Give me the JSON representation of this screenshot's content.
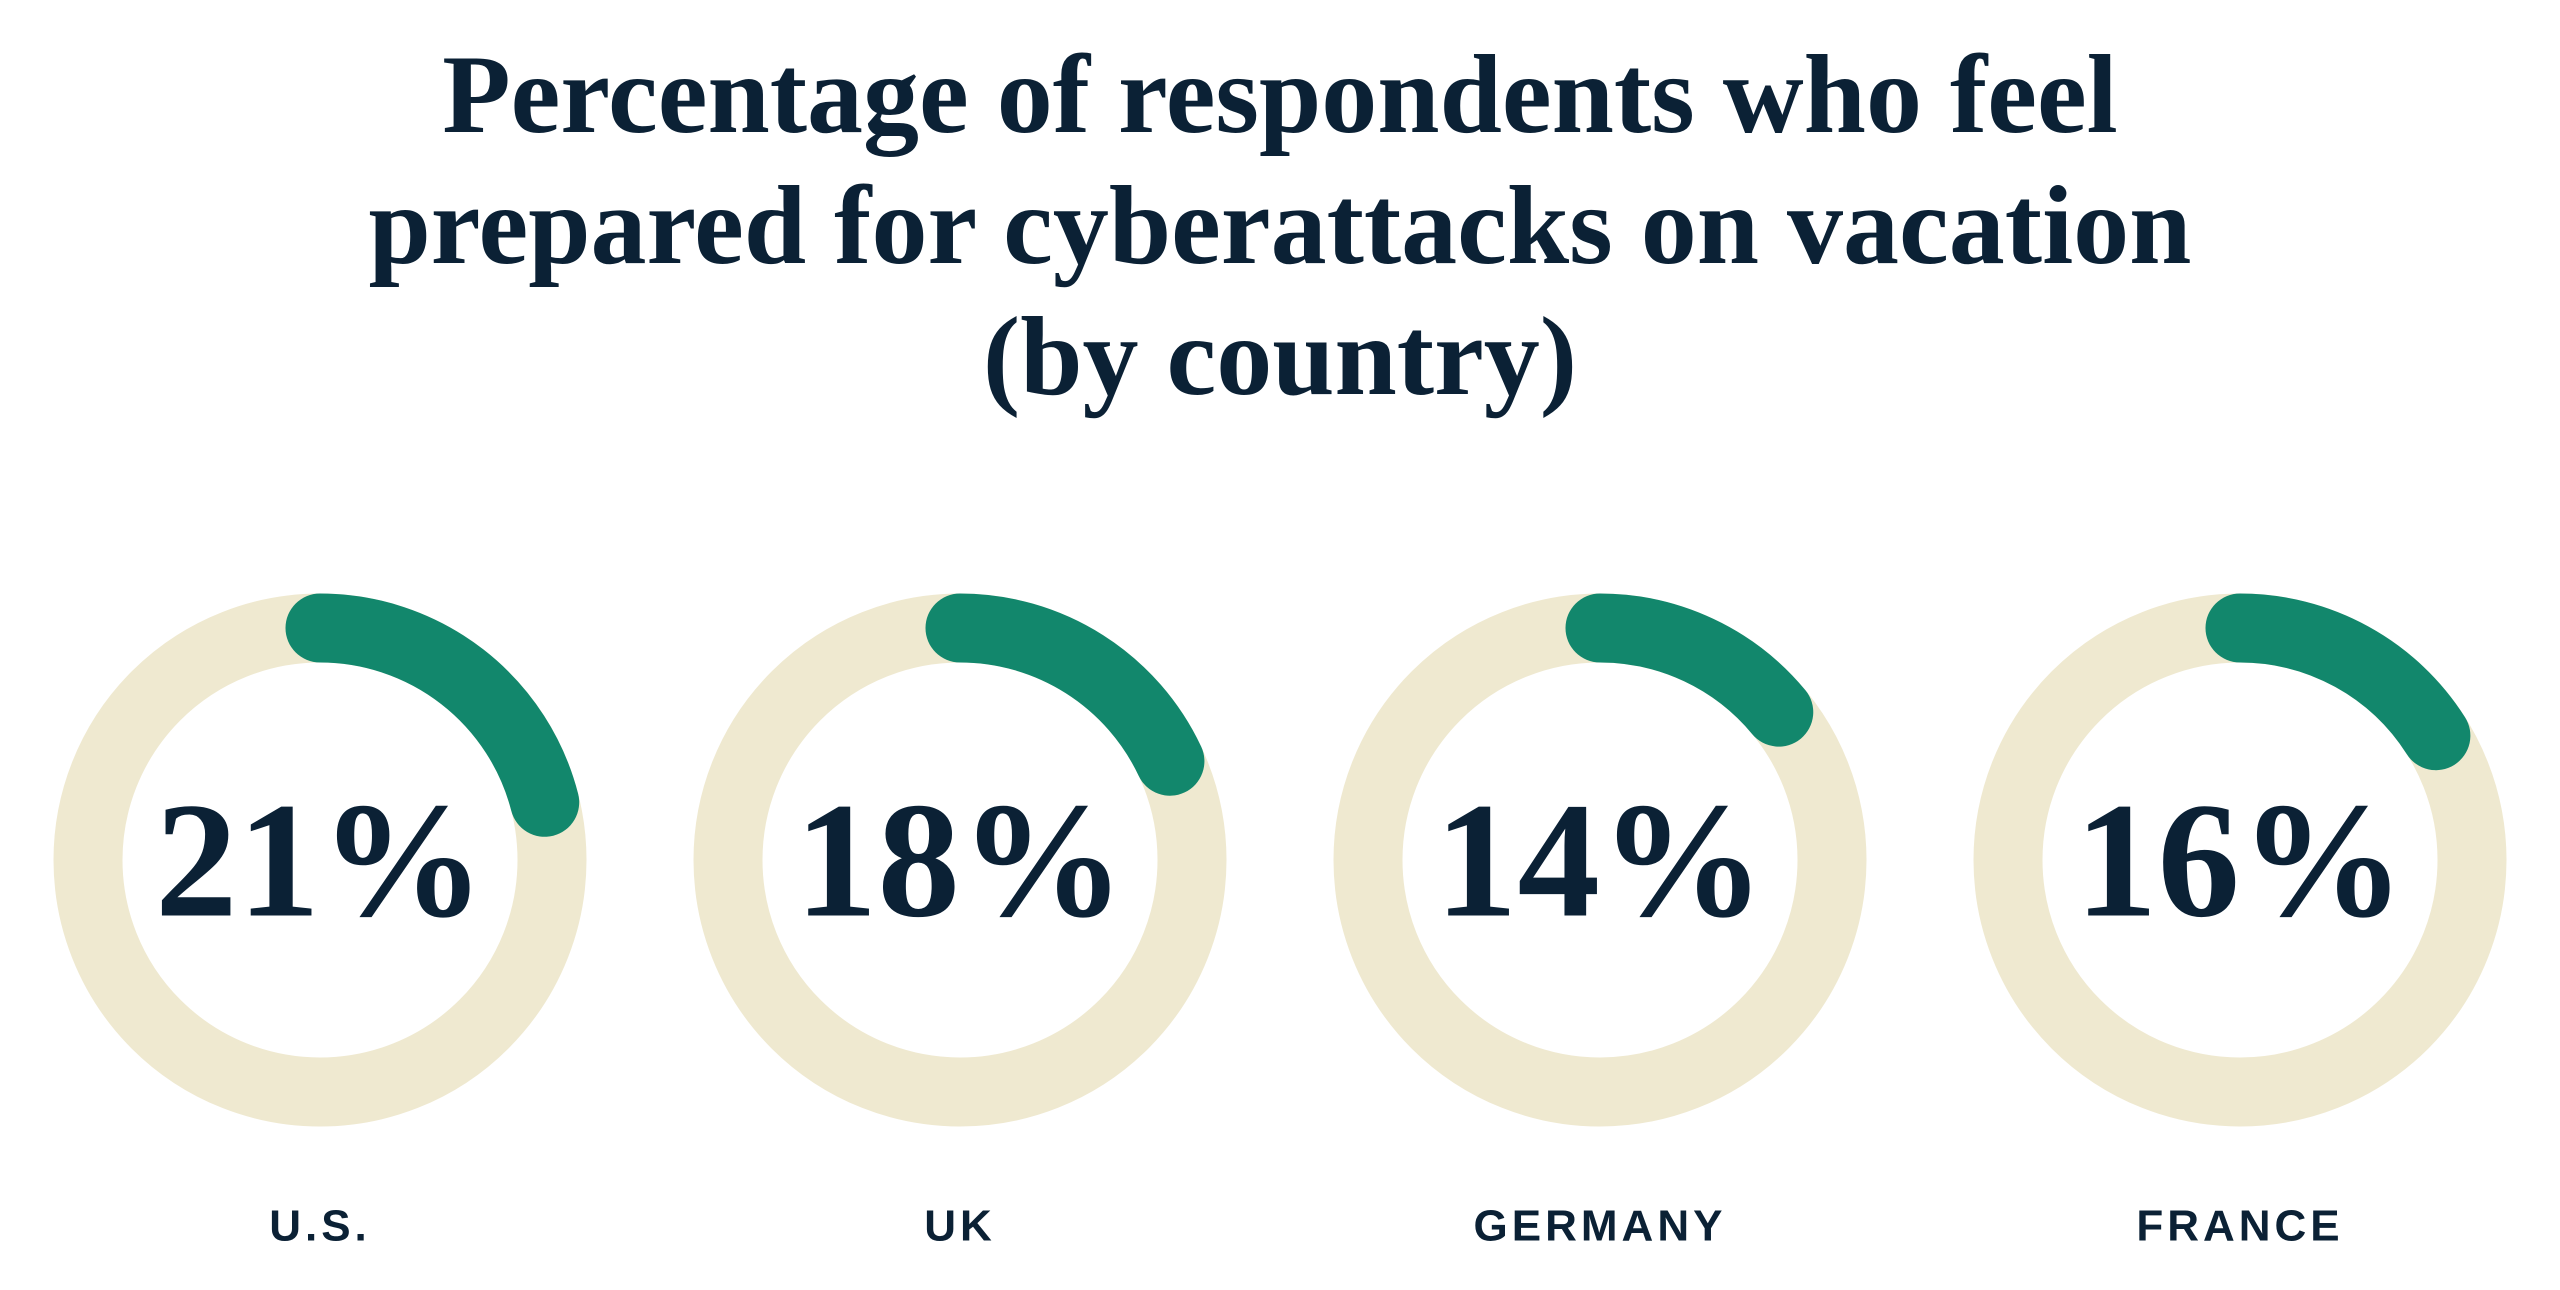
{
  "chart_data": {
    "type": "donut",
    "title": "Percentage of respondents who feel prepared for cyberattacks on vacation (by country)",
    "categories": [
      "U.S.",
      "UK",
      "GERMANY",
      "FRANCE"
    ],
    "values": [
      21,
      18,
      14,
      16
    ],
    "value_labels": [
      "21%",
      "18%",
      "14%",
      "16%"
    ],
    "color": "#12876c",
    "track_color": "#efe9d0",
    "ylim": [
      0,
      100
    ]
  }
}
